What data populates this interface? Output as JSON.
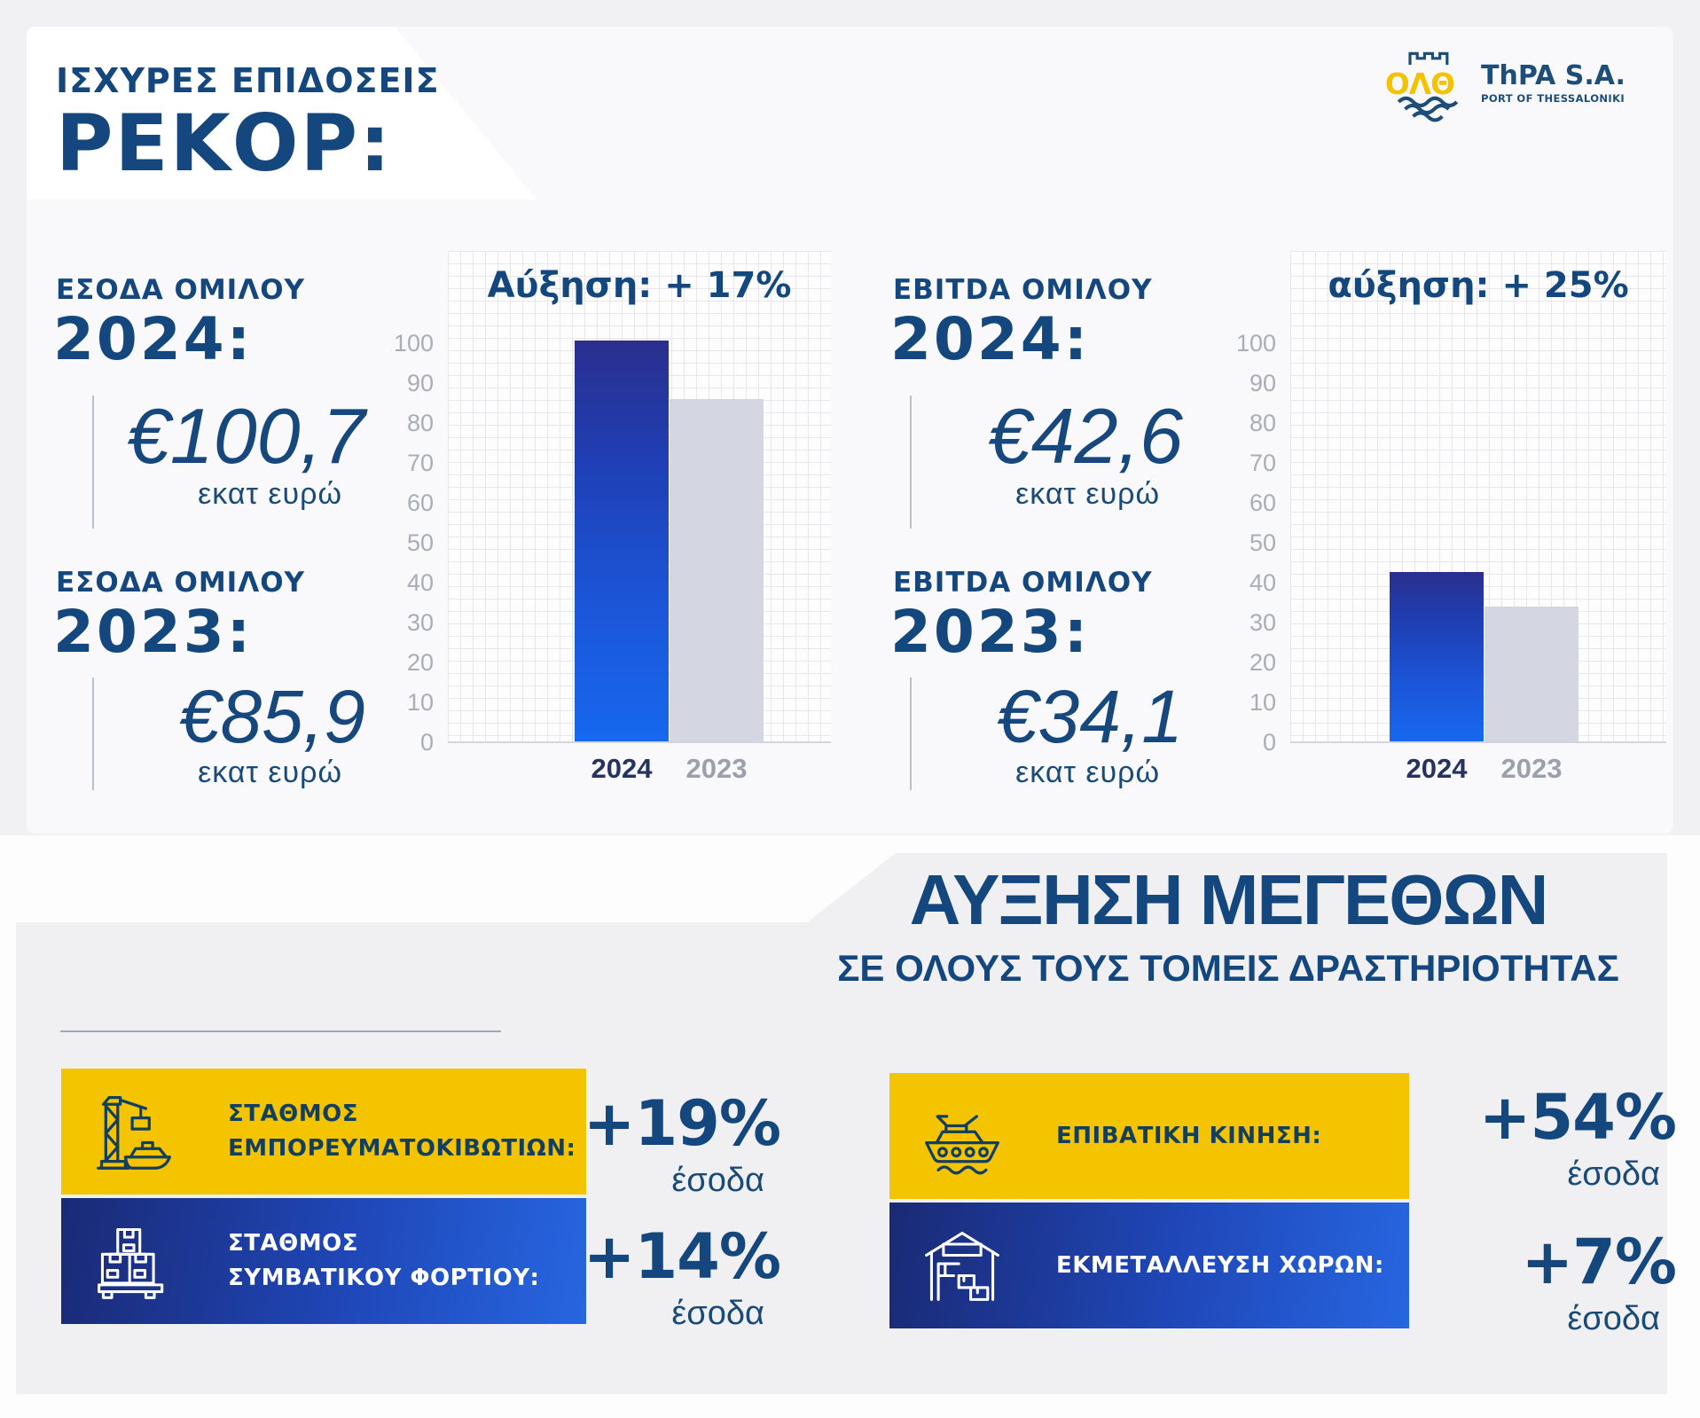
{
  "header": {
    "title_line1": "ΙΣΧΥΡΕΣ ΕΠΙΔΟΣΕΙΣ",
    "title_line2": "ΡΕΚΟΡ:"
  },
  "logo": {
    "monogram": "ΟΛΘ",
    "org": "ThPA S.A.",
    "tagline": "PORT OF THESSALONIKI"
  },
  "stats": [
    {
      "label": "ΕΣΟΔΑ ΟΜΙΛΟΥ",
      "year": "2024:",
      "value": "€100,7",
      "unit": "εκατ ευρώ"
    },
    {
      "label": "ΕΣΟΔΑ ΟΜΙΛΟΥ",
      "year": "2023:",
      "value": "€85,9",
      "unit": "εκατ ευρώ"
    },
    {
      "label": "EBITDA ΟΜΙΛΟΥ",
      "year": "2024:",
      "value": "€42,6",
      "unit": "εκατ ευρώ"
    },
    {
      "label": "EBITDA ΟΜΙΛΟΥ",
      "year": "2023:",
      "value": "€34,1",
      "unit": "εκατ ευρώ"
    }
  ],
  "chart_data": [
    {
      "type": "bar",
      "title": "Αύξηση: + 17%",
      "categories": [
        "2024",
        "2023"
      ],
      "values": [
        100.7,
        85.9
      ],
      "ylim": [
        0,
        100
      ],
      "ytick_step": 10,
      "grid": true,
      "series_colors": [
        "blue-gradient",
        "light-gray"
      ]
    },
    {
      "type": "bar",
      "title": "αύξηση: + 25%",
      "categories": [
        "2024",
        "2023"
      ],
      "values": [
        42.6,
        34.1
      ],
      "ylim": [
        0,
        100
      ],
      "ytick_step": 10,
      "grid": true,
      "series_colors": [
        "blue-gradient",
        "light-gray"
      ]
    }
  ],
  "growth": {
    "heading": "ΑΥΞΗΣΗ ΜΕΓΕΘΩΝ",
    "subheading": "ΣΕ ΟΛΟΥΣ ΤΟΥΣ ΤΟΜΕΙΣ ΔΡΑΣΤΗΡΙΟΤΗΤΑΣ",
    "cards": [
      {
        "line1": "ΣΤΑΘΜΟΣ",
        "line2": "ΕΜΠΟΡΕΥΜΑΤΟΚΙΒΩΤΙΩΝ:",
        "icon": "container-crane-ship-icon",
        "percent": "+19%",
        "percent_caption": "έσοδα"
      },
      {
        "line1": "ΣΤΑΘΜΟΣ",
        "line2": "ΣΥΜΒΑΤΙΚΟΥ ΦΟΡΤΙΟΥ:",
        "icon": "cargo-boxes-pallet-icon",
        "percent": "+14%",
        "percent_caption": "έσοδα"
      },
      {
        "line1": "ΕΠΙΒΑΤΙΚΗ ΚΙΝΗΣΗ:",
        "line2": "",
        "icon": "passenger-ship-icon",
        "percent": "+54%",
        "percent_caption": "έσοδα"
      },
      {
        "line1": "ΕΚΜΕΤΑΛΛΕΥΣΗ ΧΩΡΩΝ:",
        "line2": "",
        "icon": "warehouse-icon",
        "percent": "+7%",
        "percent_caption": "έσοδα"
      }
    ]
  },
  "colors": {
    "navy": "#14477e",
    "brand_yellow": "#f5c400",
    "bar_blue_top": "#2a2f8e",
    "bar_blue_bottom": "#1668ef",
    "bar_gray": "#d4d6e1",
    "panel_gray": "#f0f0f2"
  }
}
